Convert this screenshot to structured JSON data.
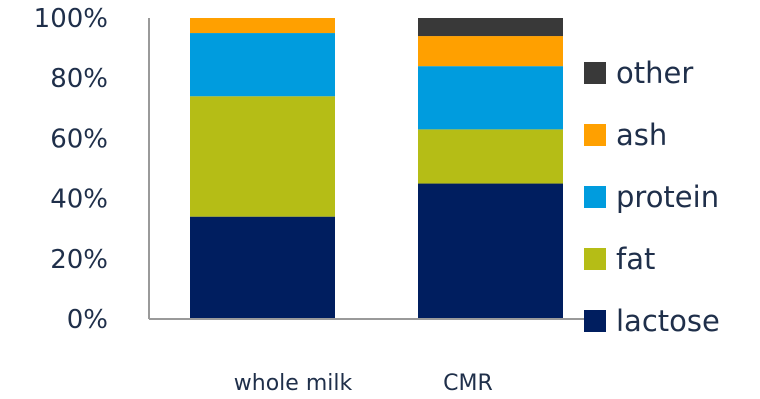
{
  "chart_data": {
    "type": "bar",
    "stacked": true,
    "categories": [
      "whole milk",
      "CMR"
    ],
    "series": [
      {
        "name": "lactose",
        "color": "#001e5f",
        "values": [
          34,
          45
        ]
      },
      {
        "name": "fat",
        "color": "#b5bd16",
        "values": [
          40,
          18
        ]
      },
      {
        "name": "protein",
        "color": "#009cde",
        "values": [
          21,
          21
        ]
      },
      {
        "name": "ash",
        "color": "#ffa000",
        "values": [
          5,
          10
        ]
      },
      {
        "name": "other",
        "color": "#393939",
        "values": [
          0,
          6
        ]
      }
    ],
    "yticks": [
      "0%",
      "20%",
      "40%",
      "60%",
      "80%",
      "100%"
    ],
    "ylim": [
      0,
      100
    ],
    "legend_position": "right",
    "grid": false
  }
}
